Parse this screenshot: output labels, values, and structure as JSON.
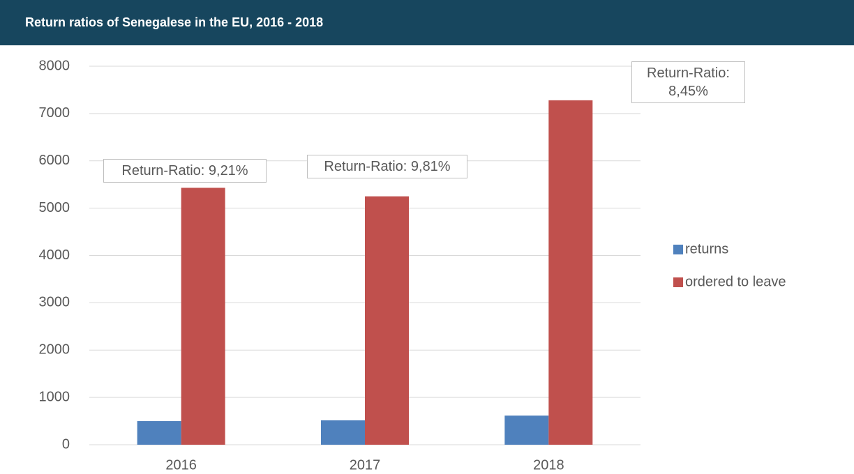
{
  "chart_data": {
    "type": "bar",
    "title": "Return ratios of Senegalese in the EU, 2016 - 2018",
    "categories": [
      "2016",
      "2017",
      "2018"
    ],
    "series": [
      {
        "name": "returns",
        "color": "#4f81bd",
        "values": [
          500,
          515,
          615
        ]
      },
      {
        "name": "ordered to leave",
        "color": "#c0504d",
        "values": [
          5430,
          5250,
          7280
        ]
      }
    ],
    "ylim": [
      0,
      8000
    ],
    "yticks": [
      0,
      1000,
      2000,
      3000,
      4000,
      5000,
      6000,
      7000,
      8000
    ],
    "grid": true,
    "legend": "right",
    "annotations": [
      {
        "text": "Return-Ratio: 9,21%",
        "category": "2016"
      },
      {
        "text": "Return-Ratio: 9,81%",
        "category": "2017"
      },
      {
        "text": "Return-Ratio: 8,45%",
        "category": "2018"
      }
    ]
  }
}
